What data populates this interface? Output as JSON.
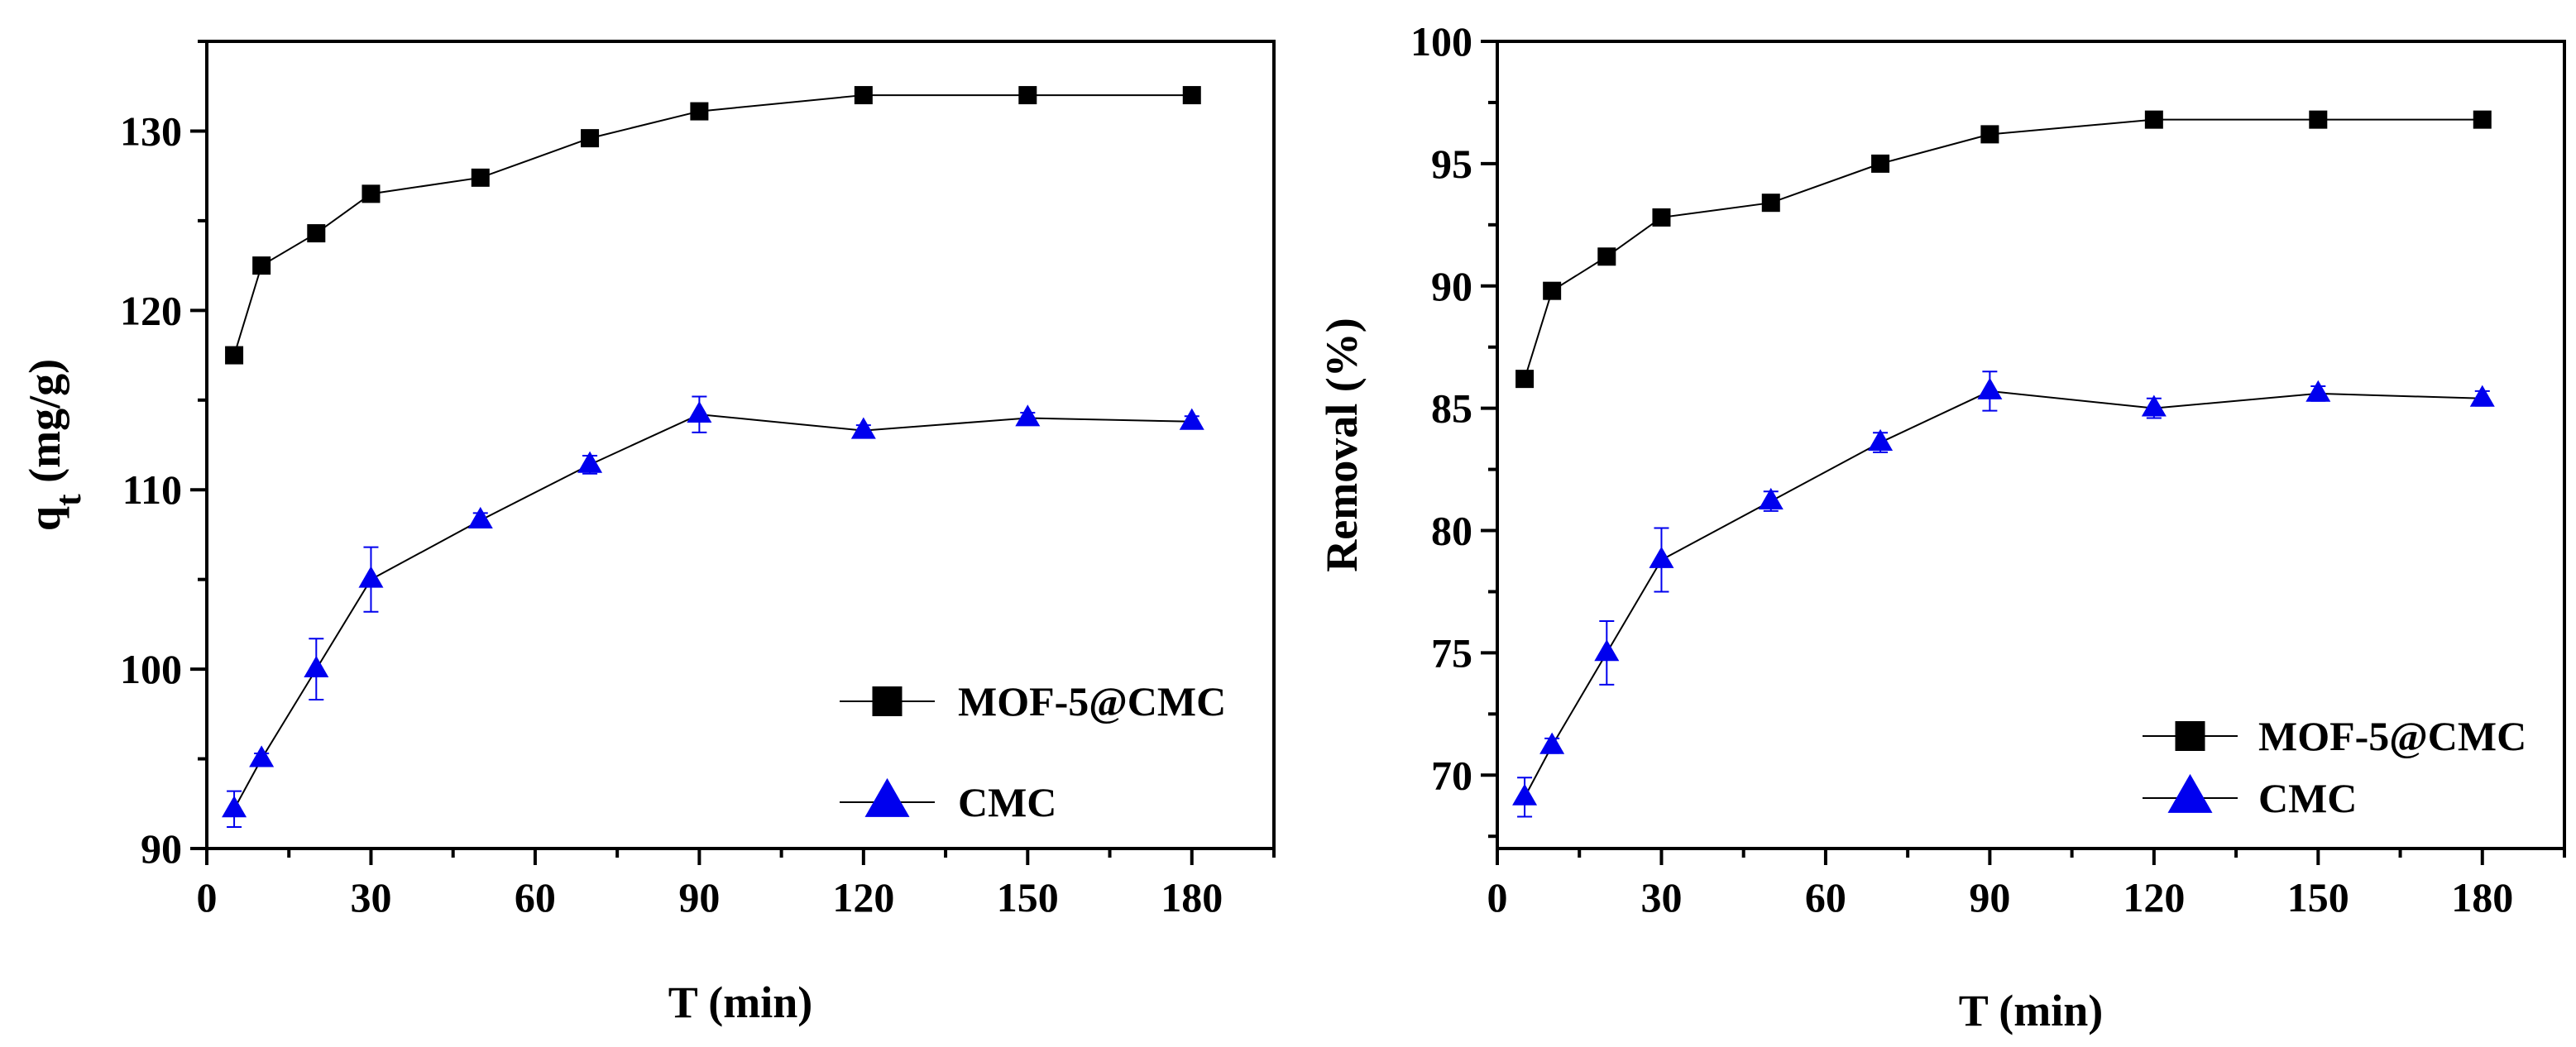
{
  "chart_data": [
    {
      "type": "line",
      "title": "",
      "xlabel": "T (min)",
      "ylabel_main": "q",
      "ylabel_sub": "t",
      "ylabel_rest": " (mg/g)",
      "xlim": [
        0,
        195
      ],
      "ylim": [
        90,
        135
      ],
      "xticks": [
        0,
        30,
        60,
        90,
        120,
        150,
        180
      ],
      "yticks": [
        90,
        100,
        110,
        120,
        130
      ],
      "legend_position": "lower-right",
      "series": [
        {
          "name": "MOF-5@CMC",
          "marker": "square",
          "color": "#000000",
          "x": [
            5,
            10,
            20,
            30,
            50,
            70,
            90,
            120,
            150,
            180
          ],
          "y": [
            117.5,
            122.5,
            124.3,
            126.5,
            127.4,
            129.6,
            131.1,
            132.0,
            132.0,
            132.0
          ]
        },
        {
          "name": "CMC",
          "marker": "triangle",
          "color": "#0000ee",
          "x": [
            5,
            10,
            20,
            30,
            50,
            70,
            90,
            120,
            150,
            180
          ],
          "y": [
            92.2,
            95.0,
            100.0,
            105.0,
            108.3,
            111.4,
            114.2,
            113.3,
            114.0,
            113.8
          ],
          "err": [
            1.0,
            0.3,
            1.7,
            1.8,
            0.4,
            0.5,
            1.0,
            0.3,
            0.3,
            0.3
          ]
        }
      ]
    },
    {
      "type": "line",
      "title": "",
      "xlabel": "T (min)",
      "ylabel": "Removal (%)",
      "xlim": [
        0,
        195
      ],
      "ylim": [
        67,
        100
      ],
      "xticks": [
        0,
        30,
        60,
        90,
        120,
        150,
        180
      ],
      "yticks": [
        70,
        75,
        80,
        85,
        90,
        95,
        100
      ],
      "legend_position": "lower-right",
      "series": [
        {
          "name": "MOF-5@CMC",
          "marker": "square",
          "color": "#000000",
          "x": [
            5,
            10,
            20,
            30,
            50,
            70,
            90,
            120,
            150,
            180
          ],
          "y": [
            86.2,
            89.8,
            91.2,
            92.8,
            93.4,
            95.0,
            96.2,
            96.8,
            96.8,
            96.8
          ]
        },
        {
          "name": "CMC",
          "marker": "triangle",
          "color": "#0000ee",
          "x": [
            5,
            10,
            20,
            30,
            50,
            70,
            90,
            120,
            150,
            180
          ],
          "y": [
            69.1,
            71.2,
            75.0,
            78.8,
            81.2,
            83.6,
            85.7,
            85.0,
            85.6,
            85.4
          ],
          "err": [
            0.8,
            0.3,
            1.3,
            1.3,
            0.4,
            0.4,
            0.8,
            0.4,
            0.3,
            0.3
          ]
        }
      ]
    }
  ]
}
